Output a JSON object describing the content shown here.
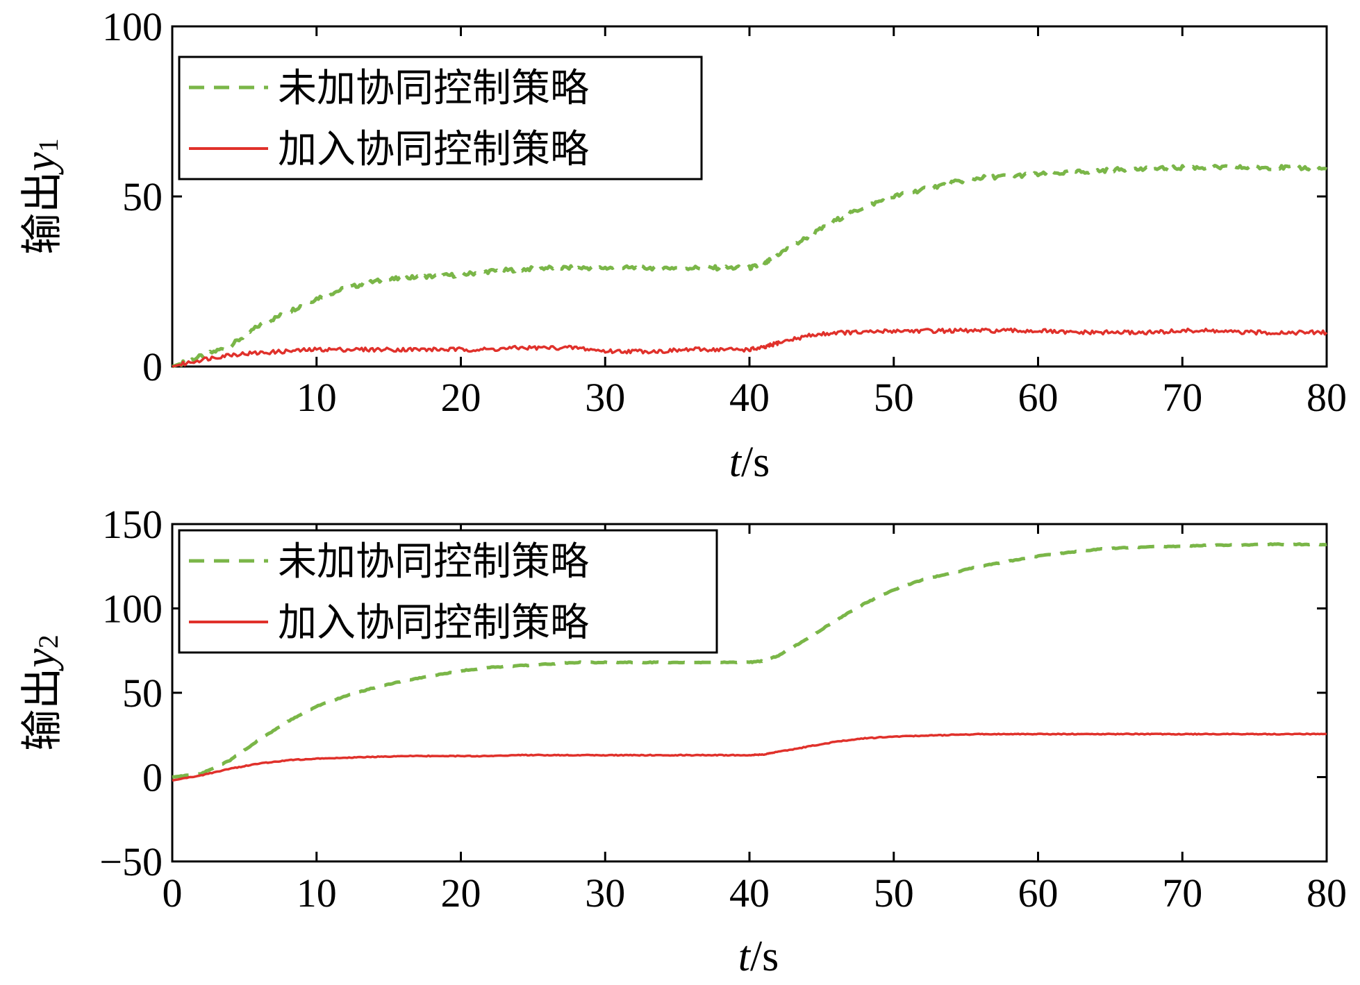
{
  "chart_data": [
    {
      "type": "line",
      "ylabel_prefix": "输出",
      "ylabel_var": "y",
      "ylabel_sub": "1",
      "xlabel_var": "t",
      "xlabel_unit": "/s",
      "xlim": [
        0,
        80
      ],
      "ylim": [
        0,
        100
      ],
      "xticks": [
        10,
        20,
        30,
        40,
        50,
        60,
        70,
        80
      ],
      "xtick_labels": [
        "10",
        "20",
        "30",
        "40",
        "50",
        "60",
        "70",
        "80"
      ],
      "yticks": [
        0,
        50,
        100
      ],
      "ytick_labels": [
        "0",
        "50",
        "100"
      ],
      "grid": false,
      "legend_position": "top-left",
      "series": [
        {
          "name": "未加协同控制策略",
          "color": "#7ab648",
          "style": "dashed",
          "x": [
            0,
            2,
            4,
            6,
            8,
            10,
            12,
            14,
            16,
            18,
            20,
            22,
            24,
            26,
            28,
            30,
            32,
            34,
            36,
            38,
            40,
            41,
            42,
            44,
            46,
            48,
            50,
            52,
            54,
            56,
            58,
            60,
            62,
            64,
            66,
            68,
            70,
            72,
            74,
            76,
            78,
            80
          ],
          "y": [
            0,
            3,
            6,
            12,
            16,
            20,
            23,
            25,
            26,
            26.5,
            27,
            28,
            28.5,
            29,
            29,
            29,
            29,
            29,
            29,
            29,
            29,
            30,
            33,
            38,
            43,
            47,
            50,
            52,
            54,
            55.5,
            56,
            56.5,
            57,
            57.5,
            58,
            58,
            58.5,
            58.5,
            58.5,
            58.5,
            58.5,
            58
          ]
        },
        {
          "name": "加入协同控制策略",
          "color": "#e0312b",
          "style": "solid",
          "x": [
            0,
            2,
            4,
            6,
            8,
            10,
            12,
            14,
            16,
            18,
            20,
            22,
            24,
            26,
            28,
            30,
            32,
            34,
            36,
            38,
            40,
            41,
            42,
            44,
            46,
            48,
            50,
            52,
            54,
            56,
            58,
            60,
            62,
            64,
            66,
            68,
            70,
            72,
            74,
            76,
            78,
            80
          ],
          "y": [
            0,
            2,
            3.5,
            4,
            4.5,
            5,
            5,
            5,
            5,
            5,
            5,
            5,
            5.5,
            5.5,
            5.5,
            4.5,
            4.5,
            4.5,
            5,
            5,
            5,
            5.5,
            7,
            9,
            10,
            10,
            10.5,
            10.5,
            10.5,
            10.5,
            10.5,
            10.5,
            10,
            10,
            10,
            10,
            10.5,
            10.5,
            10,
            10,
            10,
            10
          ]
        }
      ]
    },
    {
      "type": "line",
      "ylabel_prefix": "输出",
      "ylabel_var": "y",
      "ylabel_sub": "2",
      "xlabel_var": "t",
      "xlabel_unit": "/s",
      "xlim": [
        0,
        80
      ],
      "ylim": [
        -50,
        150
      ],
      "xticks": [
        0,
        10,
        20,
        30,
        40,
        50,
        60,
        70,
        80
      ],
      "xtick_labels": [
        "0",
        "10",
        "20",
        "30",
        "40",
        "50",
        "60",
        "70",
        "80"
      ],
      "yticks": [
        -50,
        0,
        50,
        100,
        150
      ],
      "ytick_labels": [
        "−50",
        "0",
        "50",
        "100",
        "150"
      ],
      "grid": false,
      "legend_position": "top-left",
      "series": [
        {
          "name": "未加协同控制策略",
          "color": "#7ab648",
          "style": "dashed",
          "x": [
            0,
            2,
            4,
            6,
            8,
            10,
            12,
            14,
            16,
            18,
            20,
            22,
            24,
            26,
            28,
            30,
            32,
            34,
            36,
            38,
            40,
            41,
            42,
            44,
            46,
            48,
            50,
            52,
            54,
            56,
            58,
            60,
            62,
            64,
            66,
            68,
            70,
            72,
            74,
            76,
            78,
            80
          ],
          "y": [
            0,
            2,
            10,
            22,
            33,
            42,
            48,
            53,
            57,
            60,
            63,
            65,
            66,
            67,
            68,
            68,
            68,
            68,
            68,
            68,
            68,
            69,
            72,
            82,
            93,
            103,
            111,
            117,
            121,
            125,
            128,
            131,
            133,
            135,
            136,
            136.5,
            137,
            137.5,
            137.5,
            138,
            138,
            138
          ]
        },
        {
          "name": "加入协同控制策略",
          "color": "#e0312b",
          "style": "solid",
          "x": [
            0,
            2,
            4,
            6,
            8,
            10,
            12,
            14,
            16,
            18,
            20,
            22,
            24,
            26,
            28,
            30,
            32,
            34,
            36,
            38,
            40,
            41,
            42,
            44,
            46,
            48,
            50,
            52,
            54,
            56,
            58,
            60,
            62,
            64,
            66,
            68,
            70,
            72,
            74,
            76,
            78,
            80
          ],
          "y": [
            -2,
            1,
            5,
            8,
            10,
            11,
            11.5,
            12,
            12.5,
            12.5,
            12.5,
            12.5,
            13,
            13,
            13,
            13,
            13,
            13,
            13,
            13,
            13,
            13.5,
            15,
            18,
            21,
            23,
            24,
            24.5,
            25,
            25.5,
            25.5,
            25.5,
            25.5,
            25.5,
            25.5,
            25.5,
            25.5,
            25.5,
            25.5,
            25.5,
            25.5,
            25.5
          ]
        }
      ]
    }
  ]
}
